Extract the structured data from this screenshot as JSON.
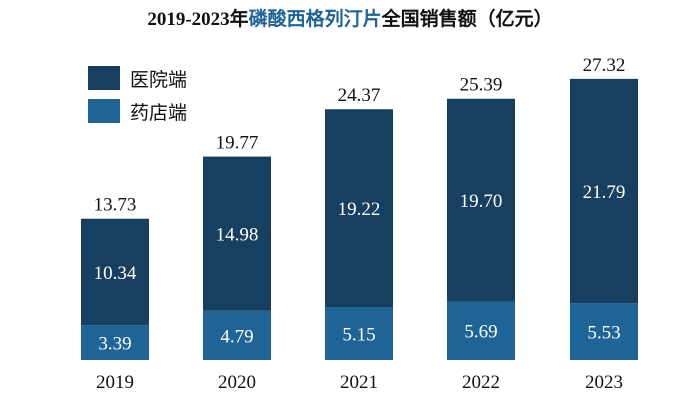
{
  "chart_data": {
    "type": "bar",
    "stacked": true,
    "title_parts": [
      "2019-2023年",
      "磷酸西格列汀片",
      "全国销售额（亿元）"
    ],
    "categories": [
      "2019",
      "2020",
      "2021",
      "2022",
      "2023"
    ],
    "series": [
      {
        "name": "药店端",
        "values": [
          3.39,
          4.79,
          5.15,
          5.69,
          5.53
        ],
        "color": "#1f6496"
      },
      {
        "name": "医院端",
        "values": [
          10.34,
          14.98,
          19.22,
          19.7,
          21.79
        ],
        "color": "#173f5f"
      }
    ],
    "totals": [
      13.73,
      19.77,
      24.37,
      25.39,
      27.32
    ],
    "legend_order": [
      "医院端",
      "药店端"
    ],
    "legend_position": "top-left",
    "grid": false,
    "ylim": [
      0,
      30
    ],
    "title_highlight_color": "#1f6496"
  }
}
